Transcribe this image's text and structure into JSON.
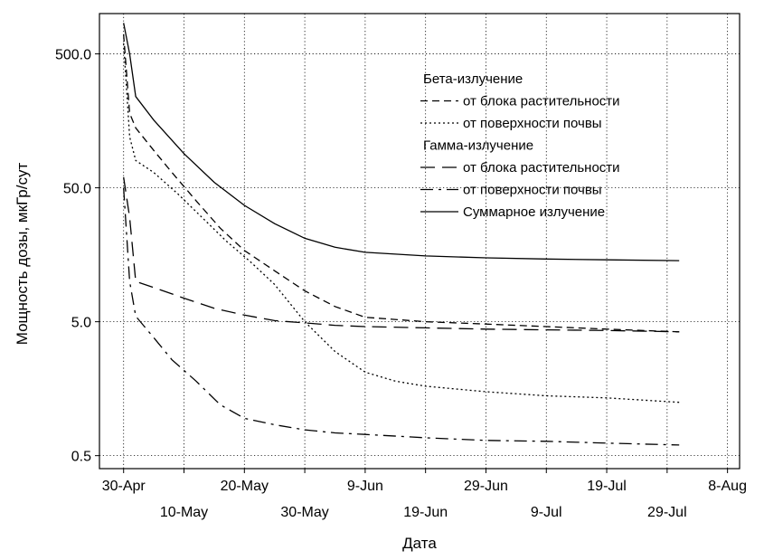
{
  "chart_data": {
    "type": "line",
    "xlabel": "Дата",
    "ylabel": "Мощность дозы, мкГр/сут",
    "yscale": "log",
    "ylim": [
      0.4,
      1000
    ],
    "xlim": [
      "2001-04-26",
      "2001-08-10"
    ],
    "grid": true,
    "legend_position": "top-right",
    "x_ticks": [
      {
        "date": "2001-04-30",
        "label": "30-Apr"
      },
      {
        "date": "2001-05-10",
        "label": "10-May"
      },
      {
        "date": "2001-05-20",
        "label": "20-May"
      },
      {
        "date": "2001-05-30",
        "label": "30-May"
      },
      {
        "date": "2001-06-09",
        "label": "9-Jun"
      },
      {
        "date": "2001-06-19",
        "label": "19-Jun"
      },
      {
        "date": "2001-06-29",
        "label": "29-Jun"
      },
      {
        "date": "2001-07-09",
        "label": "9-Jul"
      },
      {
        "date": "2001-07-19",
        "label": "19-Jul"
      },
      {
        "date": "2001-07-29",
        "label": "29-Jul"
      },
      {
        "date": "2001-08-08",
        "label": "8-Aug"
      }
    ],
    "y_ticks": [
      {
        "value": 0.5,
        "label": "0.5"
      },
      {
        "value": 5,
        "label": "5.0"
      },
      {
        "value": 50,
        "label": "50.0"
      },
      {
        "value": 500,
        "label": "500.0"
      }
    ],
    "legend_groups": [
      {
        "label": "Бета-излучение"
      },
      {
        "label": "Гамма-излучение"
      }
    ],
    "series": [
      {
        "name": "от блока растительности",
        "group": 0,
        "style": "dash",
        "x": [
          "2001-04-30",
          "2001-05-01",
          "2001-05-02",
          "2001-05-05",
          "2001-05-08",
          "2001-05-12",
          "2001-05-16",
          "2001-05-20",
          "2001-05-25",
          "2001-05-30",
          "2001-06-04",
          "2001-06-09",
          "2001-06-19",
          "2001-06-29",
          "2001-07-09",
          "2001-07-19",
          "2001-07-31"
        ],
        "y": [
          700,
          180,
          140,
          95,
          65,
          40,
          25,
          17,
          12,
          8.5,
          6.5,
          5.4,
          5.0,
          4.8,
          4.6,
          4.4,
          4.2
        ]
      },
      {
        "name": "от поверхности почвы",
        "group": 0,
        "style": "dot",
        "x": [
          "2001-04-30",
          "2001-05-01",
          "2001-05-02",
          "2001-05-05",
          "2001-05-09",
          "2001-05-13",
          "2001-05-17",
          "2001-05-21",
          "2001-05-25",
          "2001-05-30",
          "2001-06-04",
          "2001-06-09",
          "2001-06-14",
          "2001-06-19",
          "2001-06-29",
          "2001-07-09",
          "2001-07-19",
          "2001-07-31"
        ],
        "y": [
          600,
          120,
          80,
          65,
          45,
          30,
          20,
          14,
          9.5,
          5.0,
          3.0,
          2.1,
          1.8,
          1.65,
          1.5,
          1.4,
          1.35,
          1.25
        ]
      },
      {
        "name": "от блока растительности",
        "group": 1,
        "style": "longdash",
        "x": [
          "2001-04-30",
          "2001-05-01",
          "2001-05-02",
          "2001-05-05",
          "2001-05-10",
          "2001-05-15",
          "2001-05-20",
          "2001-05-25",
          "2001-05-30",
          "2001-06-04",
          "2001-06-09",
          "2001-06-19",
          "2001-06-29",
          "2001-07-09",
          "2001-07-19",
          "2001-07-31"
        ],
        "y": [
          60,
          30,
          10,
          9.0,
          7.5,
          6.3,
          5.6,
          5.1,
          4.9,
          4.7,
          4.6,
          4.5,
          4.4,
          4.35,
          4.3,
          4.2
        ]
      },
      {
        "name": "от поверхности почвы",
        "group": 1,
        "style": "dashdot",
        "x": [
          "2001-04-30",
          "2001-05-01",
          "2001-05-02",
          "2001-05-05",
          "2001-05-08",
          "2001-05-12",
          "2001-05-16",
          "2001-05-20",
          "2001-05-25",
          "2001-05-30",
          "2001-06-04",
          "2001-06-09",
          "2001-06-19",
          "2001-06-29",
          "2001-07-09",
          "2001-07-19",
          "2001-07-31"
        ],
        "y": [
          50,
          10,
          5.5,
          3.8,
          2.6,
          1.8,
          1.2,
          0.95,
          0.85,
          0.78,
          0.74,
          0.72,
          0.68,
          0.65,
          0.64,
          0.62,
          0.6
        ]
      },
      {
        "name": "Суммарное излучение",
        "group": null,
        "style": "solid",
        "x": [
          "2001-04-30",
          "2001-05-01",
          "2001-05-02",
          "2001-05-05",
          "2001-05-10",
          "2001-05-15",
          "2001-05-20",
          "2001-05-25",
          "2001-05-30",
          "2001-06-04",
          "2001-06-09",
          "2001-06-19",
          "2001-06-29",
          "2001-07-09",
          "2001-07-19",
          "2001-07-31"
        ],
        "y": [
          850,
          500,
          240,
          160,
          90,
          55,
          37,
          27,
          21,
          18,
          16.5,
          15.5,
          15.0,
          14.7,
          14.5,
          14.3
        ]
      }
    ]
  }
}
